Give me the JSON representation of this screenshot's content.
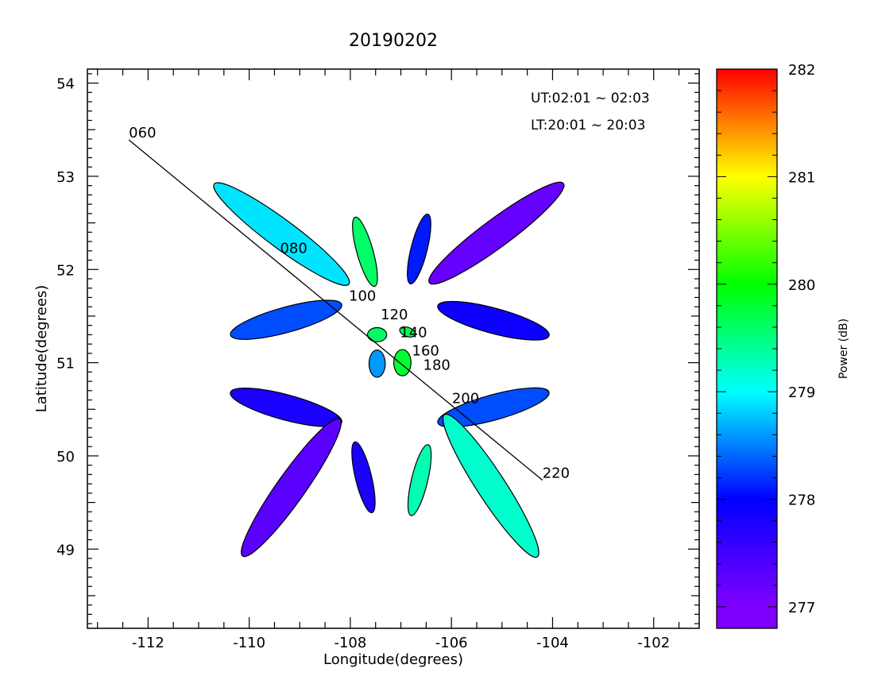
{
  "chart_data": {
    "type": "scatter",
    "title": "20190202",
    "xlabel": "Longitude(degrees)",
    "ylabel": "Latitude(degrees)",
    "xlim": [
      -113.2,
      -101.1
    ],
    "ylim": [
      48.15,
      54.15
    ],
    "xticks": [
      -112,
      -110,
      -108,
      -106,
      -104,
      -102
    ],
    "xtick_labels": [
      "-112",
      "-110",
      "-108",
      "-106",
      "-104",
      "-102"
    ],
    "yticks": [
      49,
      50,
      51,
      52,
      53,
      54
    ],
    "ytick_labels": [
      "49",
      "50",
      "51",
      "52",
      "53",
      "54"
    ],
    "annotations": [
      "UT:02:01 ~ 02:03",
      "LT:20:01 ~ 20:03"
    ],
    "beams": [
      {
        "lon": -109.36,
        "lat": 52.38,
        "half_len_deg": 1.66,
        "half_wid_deg": 0.28,
        "angle_deg": 36.6,
        "power_db": 278.9
      },
      {
        "lon": -107.71,
        "lat": 52.19,
        "half_len_deg": 0.71,
        "half_wid_deg": 0.16,
        "angle_deg": 74.3,
        "power_db": 279.6
      },
      {
        "lon": -106.64,
        "lat": 52.22,
        "half_len_deg": 0.71,
        "half_wid_deg": 0.16,
        "angle_deg": 104.1,
        "power_db": 278.1
      },
      {
        "lon": -105.11,
        "lat": 52.39,
        "half_len_deg": 1.65,
        "half_wid_deg": 0.28,
        "angle_deg": 143.5,
        "power_db": 277.2
      },
      {
        "lon": -109.27,
        "lat": 51.46,
        "half_len_deg": 1.14,
        "half_wid_deg": 0.25,
        "angle_deg": 164.6,
        "power_db": 278.3
      },
      {
        "lon": -105.17,
        "lat": 51.45,
        "half_len_deg": 1.14,
        "half_wid_deg": 0.25,
        "angle_deg": 15.0,
        "power_db": 277.9
      },
      {
        "lon": -109.27,
        "lat": 50.52,
        "half_len_deg": 1.14,
        "half_wid_deg": 0.25,
        "angle_deg": 15.0,
        "power_db": 277.8
      },
      {
        "lon": -105.17,
        "lat": 50.52,
        "half_len_deg": 1.14,
        "half_wid_deg": 0.25,
        "angle_deg": 164.6,
        "power_db": 278.3
      },
      {
        "lon": -109.17,
        "lat": 49.66,
        "half_len_deg": 1.66,
        "half_wid_deg": 0.28,
        "angle_deg": 125.3,
        "power_db": 277.3
      },
      {
        "lon": -107.74,
        "lat": 49.77,
        "half_len_deg": 0.72,
        "half_wid_deg": 0.16,
        "angle_deg": 76.4,
        "power_db": 277.8
      },
      {
        "lon": -106.63,
        "lat": 49.74,
        "half_len_deg": 0.72,
        "half_wid_deg": 0.16,
        "angle_deg": 103.5,
        "power_db": 279.3
      },
      {
        "lon": -105.22,
        "lat": 49.68,
        "half_len_deg": 1.68,
        "half_wid_deg": 0.28,
        "angle_deg": 56.9,
        "power_db": 279.2
      },
      {
        "lon": -107.47,
        "lat": 51.3,
        "half_len_deg": 0.19,
        "half_wid_deg": 0.14,
        "angle_deg": 0,
        "power_db": 279.6
      },
      {
        "lon": -106.87,
        "lat": 51.33,
        "half_len_deg": 0.16,
        "half_wid_deg": 0.09,
        "angle_deg": 20,
        "power_db": 279.7
      },
      {
        "lon": -107.47,
        "lat": 50.99,
        "half_len_deg": 0.27,
        "half_wid_deg": 0.16,
        "angle_deg": 90,
        "power_db": 278.6
      },
      {
        "lon": -106.97,
        "lat": 51.0,
        "half_len_deg": 0.26,
        "half_wid_deg": 0.17,
        "angle_deg": 90,
        "power_db": 279.8
      }
    ],
    "range_line": {
      "from": [
        -112.38,
        53.39
      ],
      "to": [
        -104.2,
        49.74
      ]
    },
    "range_markers": [
      {
        "label": "060",
        "lon": -112.38,
        "lat": 53.39
      },
      {
        "label": "080",
        "lon": -109.39,
        "lat": 52.15
      },
      {
        "label": "100",
        "lon": -108.03,
        "lat": 51.64
      },
      {
        "label": "120",
        "lon": -107.4,
        "lat": 51.44
      },
      {
        "label": "140",
        "lon": -107.02,
        "lat": 51.25
      },
      {
        "label": "160",
        "lon": -106.78,
        "lat": 51.05
      },
      {
        "label": "180",
        "lon": -106.56,
        "lat": 50.9
      },
      {
        "label": "200",
        "lon": -105.99,
        "lat": 50.54
      },
      {
        "label": "220",
        "lon": -104.2,
        "lat": 49.74
      }
    ],
    "colorbar": {
      "label": "Power (dB)",
      "range": [
        276.8,
        282
      ],
      "ticks": [
        277,
        278,
        279,
        280,
        281,
        282
      ],
      "tick_labels": [
        "277",
        "278",
        "279",
        "280",
        "281",
        "282"
      ],
      "colors": [
        "#8000ff",
        "#0000ff",
        "#00ffff",
        "#00ff00",
        "#ffff00",
        "#ff0000"
      ]
    }
  }
}
